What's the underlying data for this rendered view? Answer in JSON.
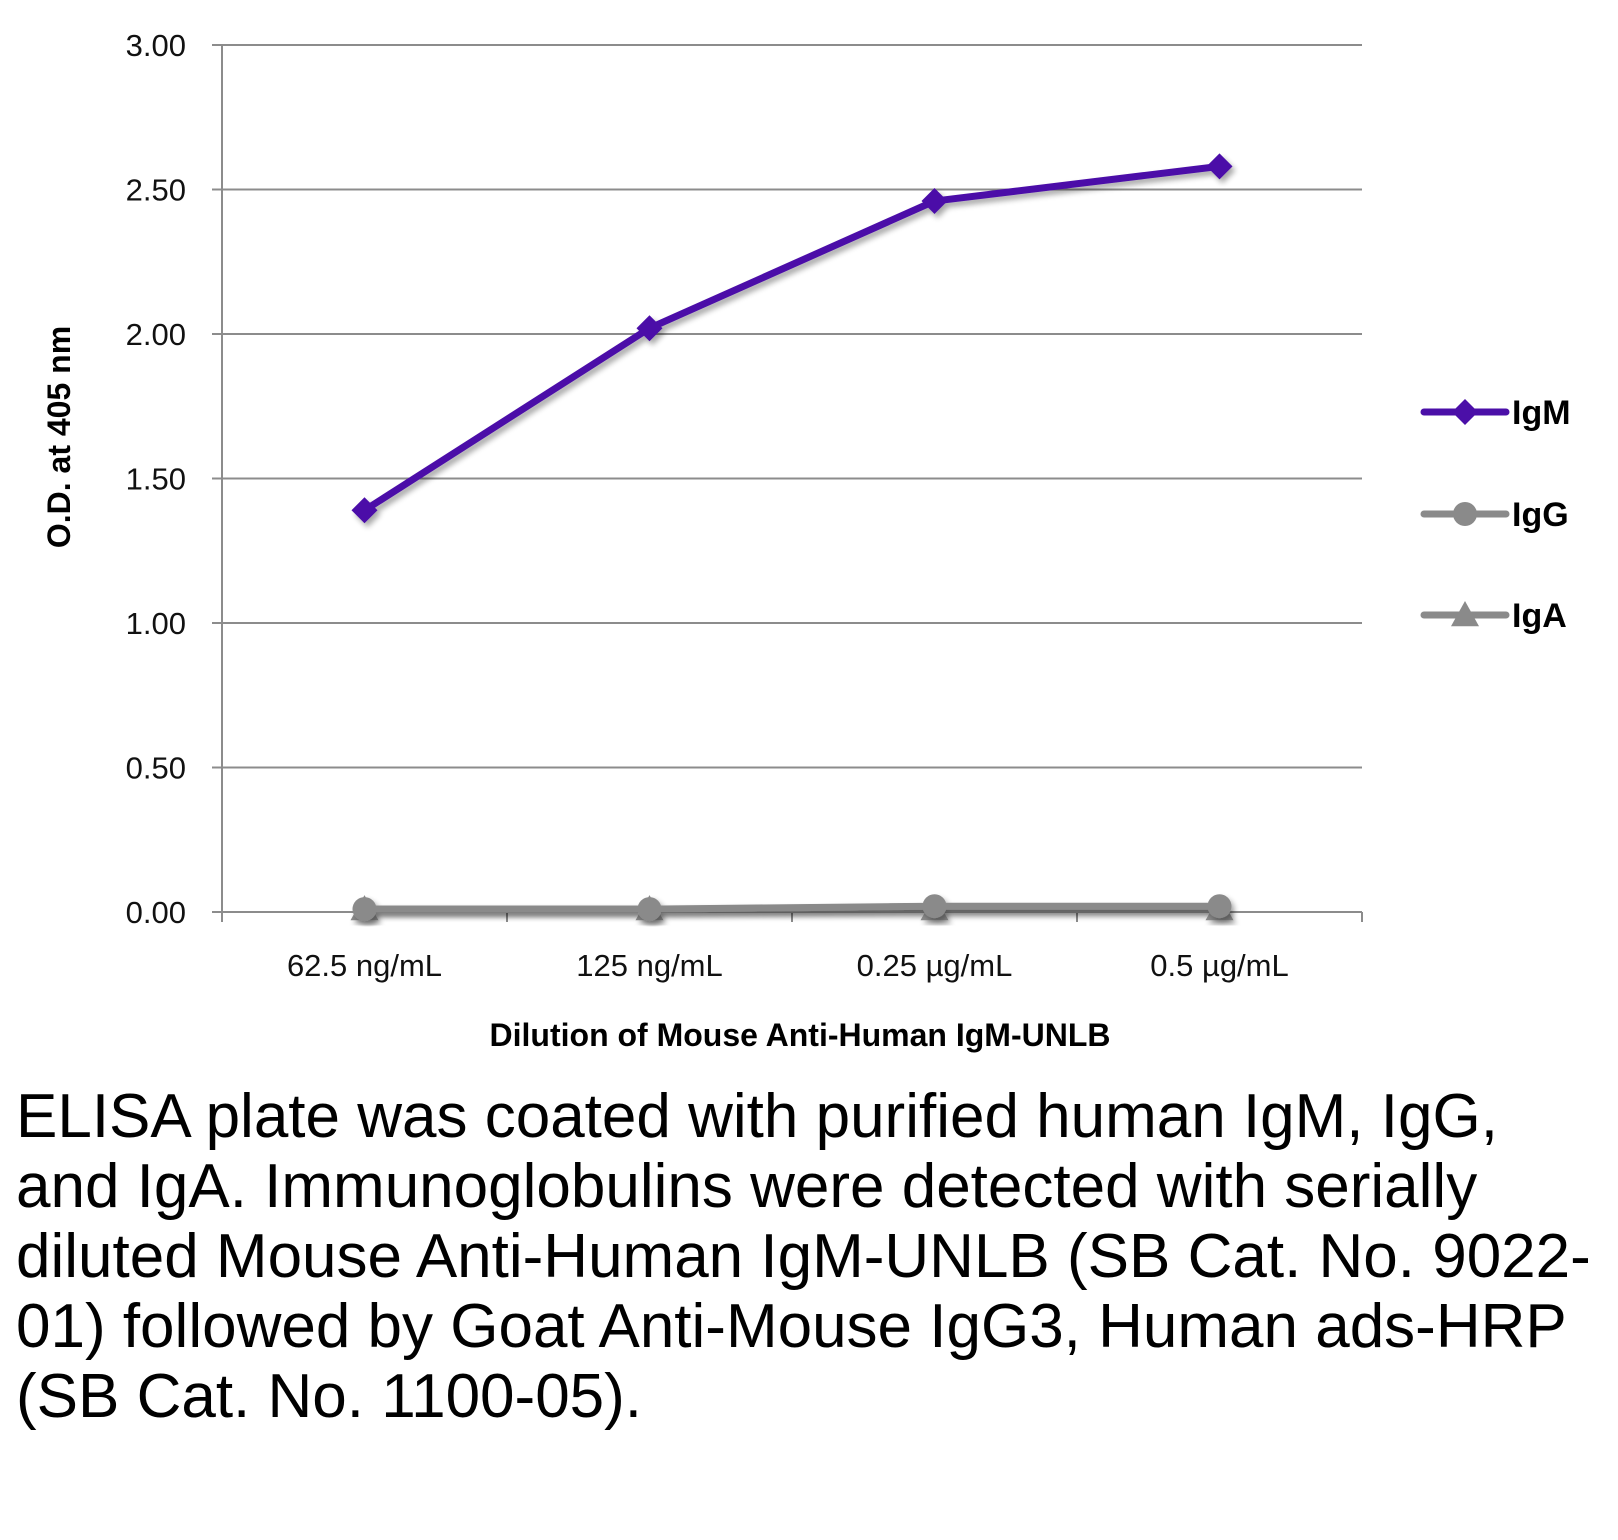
{
  "chart_data": {
    "type": "line",
    "title": "",
    "xlabel": "Dilution of Mouse Anti-Human IgM-UNLB",
    "ylabel": "O.D. at 405 nm",
    "categories": [
      "62.5 ng/mL",
      "125 ng/mL",
      "0.25 µg/mL",
      "0.5 µg/mL"
    ],
    "ylim": [
      0,
      3
    ],
    "yticks": [
      "0.00",
      "0.50",
      "1.00",
      "1.50",
      "2.00",
      "2.50",
      "3.00"
    ],
    "ytick_values": [
      0,
      0.5,
      1,
      1.5,
      2,
      2.5,
      3
    ],
    "grid": true,
    "legend_position": "right",
    "series": [
      {
        "name": "IgM",
        "marker": "diamond",
        "color": "#4b0fa8",
        "values": [
          1.39,
          2.02,
          2.46,
          2.58
        ]
      },
      {
        "name": "IgG",
        "marker": "circle",
        "color": "#8a8a8a",
        "values": [
          0.01,
          0.01,
          0.02,
          0.02
        ]
      },
      {
        "name": "IgA",
        "marker": "triangle",
        "color": "#8a8a8a",
        "values": [
          0.01,
          0.01,
          0.01,
          0.01
        ]
      }
    ]
  },
  "caption": "ELISA plate was coated with purified human IgM, IgG, and IgA.  Immunoglobulins were detected with serially diluted Mouse Anti-Human IgM-UNLB (SB Cat. No. 9022-01) followed by Goat Anti-Mouse IgG3, Human ads-HRP (SB Cat. No. 1100-05)."
}
